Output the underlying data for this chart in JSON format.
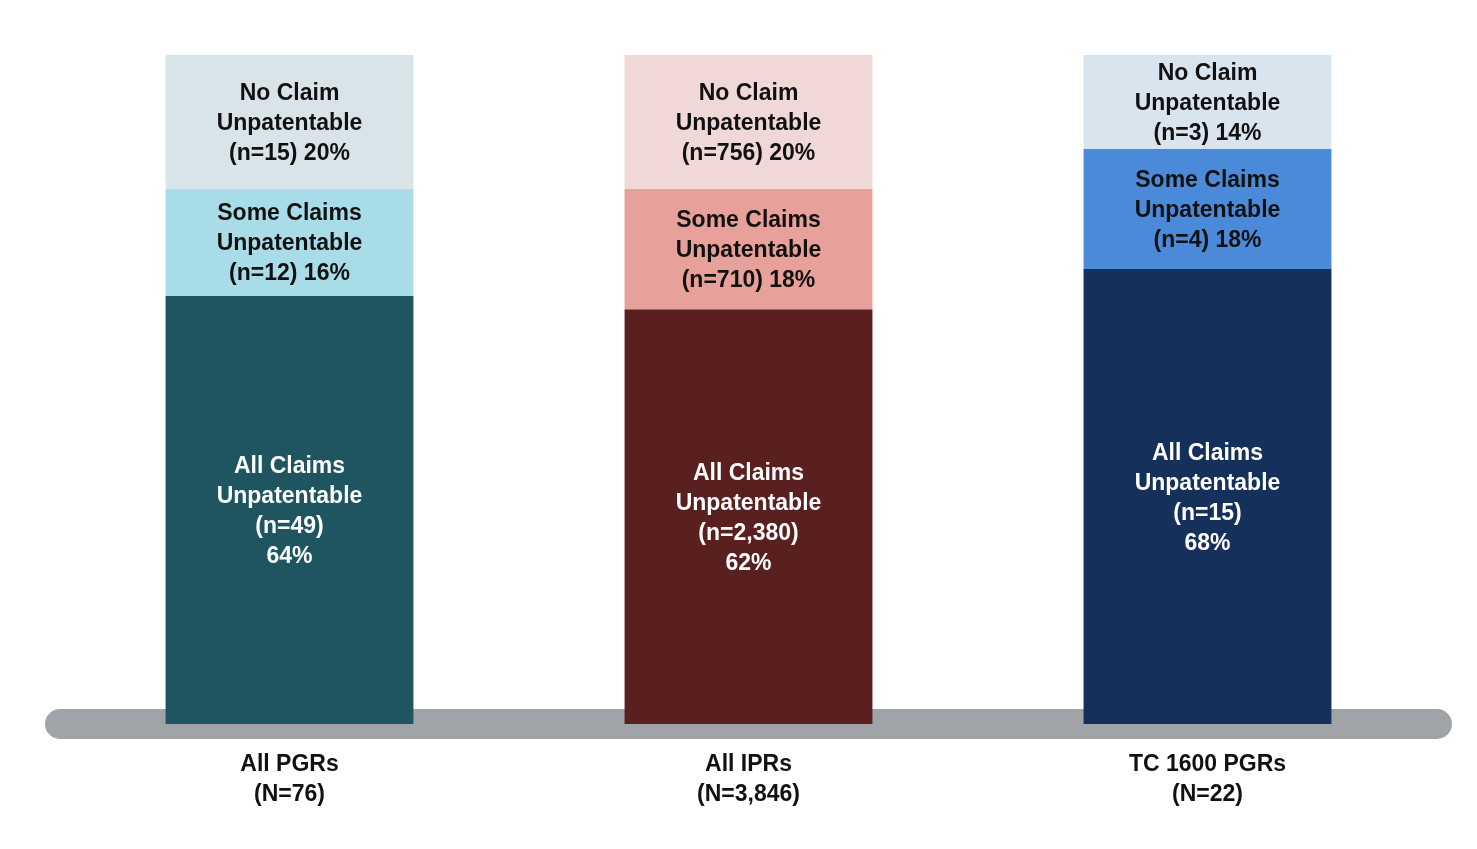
{
  "chart_data": {
    "type": "bar",
    "stacked": true,
    "categories": [
      "All PGRs\n(N=76)",
      "All IPRs\n(N=3,846)",
      "TC 1600 PGRs\n(N=22)"
    ],
    "series": [
      {
        "colors": [
          "#1f5560",
          "#5a1f1f",
          "#15305a"
        ],
        "values": [
          64,
          62,
          68
        ],
        "value_labels": [
          "All Claims\nUnpatentable\n(n=49)\n64%",
          "All Claims\nUnpatentable\n(n=2,380)\n62%",
          "All Claims\nUnpatentable\n(n=15)\n68%"
        ]
      },
      {
        "colors": [
          "#a8dce8",
          "#e8a09a",
          "#4a8ad8"
        ],
        "values": [
          16,
          18,
          18
        ],
        "value_labels": [
          "Some Claims\nUnpatentable\n(n=12) 16%",
          "Some Claims\nUnpatentable\n(n=710) 18%",
          "Some Claims\nUnpatentable\n(n=4) 18%"
        ]
      },
      {
        "colors": [
          "#d8e4e8",
          "#f0d8d6",
          "#d8e4ee"
        ],
        "values": [
          20,
          20,
          14
        ],
        "value_labels": [
          "No Claim\nUnpatentable\n(n=15) 20%",
          "No Claim\nUnpatentable\n(n=756) 20%",
          "No Claim\nUnpatentable\n(n=3) 14%"
        ]
      }
    ],
    "tick_labels": "x"
  }
}
